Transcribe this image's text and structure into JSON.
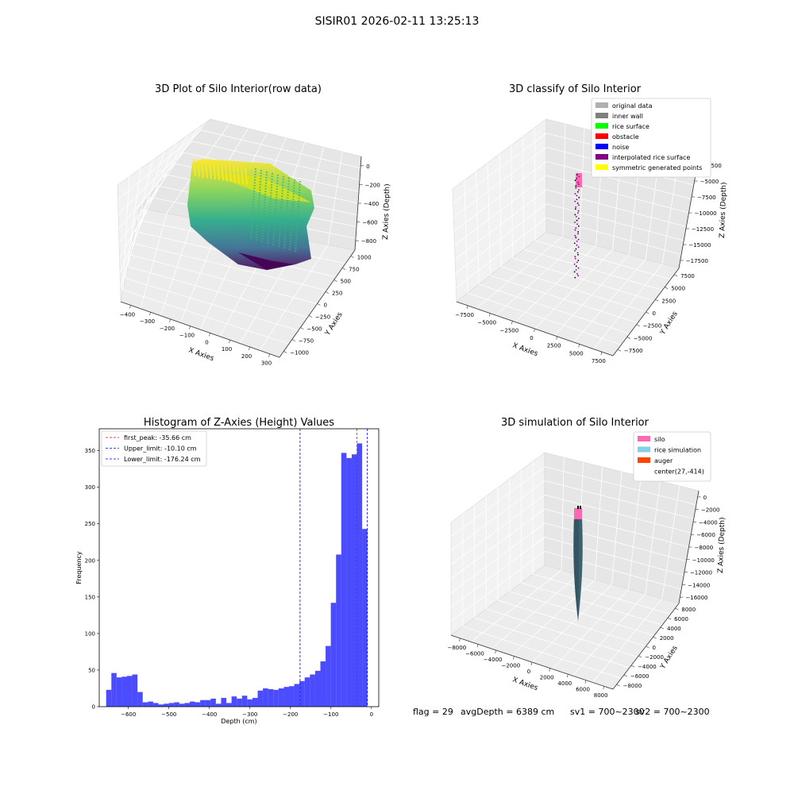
{
  "suptitle": "SISIR01 2026-02-11 13:25:13",
  "footer": {
    "flag": "flag = 29",
    "avg": "avgDepth = 6389 cm",
    "sv1": "sv1 = 700~2300",
    "sv2": "sv2 = 700~2300"
  },
  "chart_data": [
    {
      "type": "scatter",
      "projection": "3d",
      "title": "3D Plot of Silo Interior(row data)",
      "xlabel": "X Axies",
      "ylabel": "Y Axies",
      "zlabel": "Z Axies (Depth)",
      "x_ticks": [
        "−400",
        "−300",
        "−200",
        "−100",
        "0",
        "100",
        "200",
        "300"
      ],
      "y_ticks": [
        "−1000",
        "−750",
        "−500",
        "−250",
        "0",
        "250",
        "500",
        "750",
        "1000"
      ],
      "z_ticks": [
        "0",
        "−200",
        "−400",
        "−600",
        "−800"
      ],
      "xlim": [
        -430,
        300
      ],
      "ylim": [
        -1000,
        1000
      ],
      "zlim": [
        -900,
        0
      ],
      "colormap": "viridis (color by depth)",
      "grid": true
    },
    {
      "type": "scatter",
      "projection": "3d",
      "title": "3D classify of Silo Interior",
      "xlabel": "X Axies",
      "ylabel": "Y Axies",
      "zlabel": "Z Axies (Depth)",
      "x_ticks": [
        "−7500",
        "−5000",
        "−2500",
        "0",
        "2500",
        "5000",
        "7500"
      ],
      "y_ticks": [
        "−7500",
        "−5000",
        "−2500",
        "0",
        "2500",
        "5000",
        "7500"
      ],
      "z_ticks": [
        "−2500",
        "−5000",
        "−7500",
        "−10000",
        "−12500",
        "−15000",
        "−17500"
      ],
      "legend": [
        {
          "label": "original data",
          "color": "#b0b0b0"
        },
        {
          "label": "inner wall",
          "color": "#808080"
        },
        {
          "label": "rice surface",
          "color": "#00ff00"
        },
        {
          "label": "obstacle",
          "color": "#ff0000"
        },
        {
          "label": "noise",
          "color": "#0000ff"
        },
        {
          "label": "interpolated rice surface",
          "color": "#800080"
        },
        {
          "label": "symmetric generated points",
          "color": "#ffff00"
        }
      ],
      "legend_position": "top-right",
      "grid": true
    },
    {
      "type": "bar",
      "subtype": "histogram",
      "title": "Histogram of Z-Axies (Height) Values",
      "xlabel": "Depth (cm)",
      "ylabel": "Frequency",
      "xlim": [
        -672,
        18
      ],
      "ylim": [
        0,
        380
      ],
      "x_ticks": [
        -600,
        -500,
        -400,
        -300,
        -200,
        -100,
        0
      ],
      "x_tick_labels": [
        "−600",
        "−500",
        "−400",
        "−300",
        "−200",
        "−100",
        "0"
      ],
      "y_ticks": [
        0,
        50,
        100,
        150,
        200,
        250,
        300,
        350
      ],
      "bin_start": -655,
      "bin_width": 12.9,
      "counts": [
        23,
        46,
        40,
        41,
        42,
        44,
        20,
        6,
        7,
        5,
        3,
        4,
        5,
        6,
        4,
        5,
        7,
        6,
        9,
        9,
        11,
        4,
        12,
        5,
        14,
        11,
        15,
        10,
        12,
        22,
        25,
        24,
        23,
        25,
        27,
        28,
        31,
        35,
        40,
        44,
        49,
        62,
        83,
        142,
        208,
        347,
        340,
        345,
        360,
        243
      ],
      "bar_color": "#0000ff",
      "bar_opacity": 0.7,
      "vlines": [
        {
          "name": "first_peak",
          "value": -35.66,
          "label": "first_peak: -35.66 cm",
          "color": "#ff0000"
        },
        {
          "name": "upper",
          "value": -10.1,
          "label": "Upper_limit: -10.10 cm",
          "color": "#0000ff"
        },
        {
          "name": "lower",
          "value": -176.24,
          "label": "Lower_limit: -176.24 cm",
          "color": "#0000ff"
        }
      ],
      "legend_position": "top-left"
    },
    {
      "type": "scatter",
      "projection": "3d",
      "title": "3D simulation of Silo Interior",
      "xlabel": "X Axies",
      "ylabel": "Y Axies",
      "zlabel": "Z Axies (Depth)",
      "x_ticks": [
        "−8000",
        "−6000",
        "−4000",
        "−2000",
        "0",
        "2000",
        "4000",
        "6000",
        "8000"
      ],
      "y_ticks": [
        "−8000",
        "−6000",
        "−4000",
        "−2000",
        "0",
        "2000",
        "4000",
        "6000",
        "8000"
      ],
      "z_ticks": [
        "0",
        "−2000",
        "−4000",
        "−6000",
        "−8000",
        "−10000",
        "−12000",
        "−14000",
        "−16000"
      ],
      "legend": [
        {
          "label": "silo",
          "color": "#ff69b4"
        },
        {
          "label": "rice simulation",
          "color": "#87ceeb"
        },
        {
          "label": "auger",
          "color": "#ff4500"
        },
        {
          "label": "center(27,-414)",
          "color": ""
        }
      ],
      "legend_position": "top-right",
      "grid": true
    }
  ]
}
